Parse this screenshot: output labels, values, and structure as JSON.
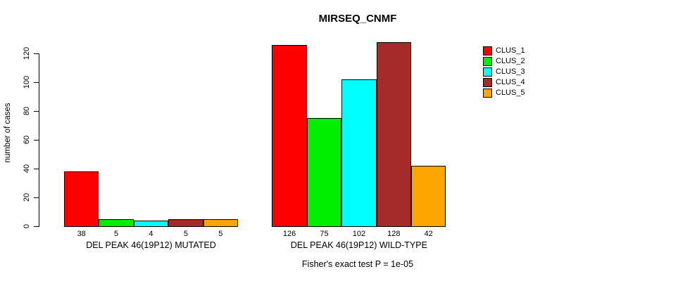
{
  "chart_data": {
    "type": "bar",
    "title": "MIRSEQ_CNMF",
    "subtitle": "Fisher's exact test P = 1e-05",
    "ylabel": "number of cases",
    "xlabel": "",
    "ylim": [
      0,
      128
    ],
    "yticks": [
      0,
      20,
      40,
      60,
      80,
      100,
      120
    ],
    "grid": false,
    "legend_position": "right",
    "bar_value_labels": true,
    "categories": [
      "DEL PEAK 46(19P12) MUTATED",
      "DEL PEAK 46(19P12) WILD-TYPE"
    ],
    "series": [
      {
        "name": "CLUS_1",
        "color": "#FF0000",
        "values": [
          38,
          126
        ]
      },
      {
        "name": "CLUS_2",
        "color": "#00EE00",
        "values": [
          5,
          75
        ]
      },
      {
        "name": "CLUS_3",
        "color": "#00FFFF",
        "values": [
          4,
          102
        ]
      },
      {
        "name": "CLUS_4",
        "color": "#A52A2A",
        "values": [
          5,
          128
        ]
      },
      {
        "name": "CLUS_5",
        "color": "#FFA500",
        "values": [
          5,
          42
        ]
      }
    ]
  }
}
